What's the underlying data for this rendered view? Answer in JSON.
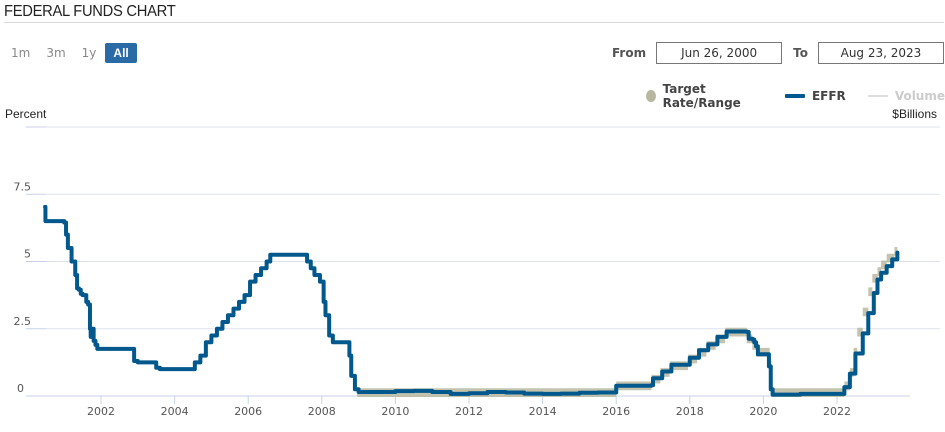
{
  "header": {
    "title": "FEDERAL FUNDS CHART"
  },
  "range_buttons": [
    {
      "label": "1m",
      "active": false
    },
    {
      "label": "3m",
      "active": false
    },
    {
      "label": "1y",
      "active": false
    },
    {
      "label": "All",
      "active": true
    }
  ],
  "date_range": {
    "from_label": "From",
    "from_value": "Jun 26, 2000",
    "to_label": "To",
    "to_value": "Aug 23, 2023"
  },
  "legend": [
    {
      "name": "Target Rate/Range",
      "icon": "circle-marker-icon",
      "color": "#b8b8a0",
      "enabled": true
    },
    {
      "name": "EFFR",
      "icon": "line-marker-icon",
      "color": "#00588c",
      "enabled": true
    },
    {
      "name": "Volume",
      "icon": "line-marker-icon",
      "color": "#dddddd",
      "enabled": false
    }
  ],
  "axes": {
    "left_title": "Percent",
    "right_title": "$Billions"
  },
  "colors": {
    "effr": "#00588c",
    "target": "#b8b8a0",
    "grid": "#dde2ea",
    "axis": "#c8d2e6",
    "active_button": "#2a6aa5"
  },
  "chart_data": {
    "type": "line",
    "title": "FEDERAL FUNDS CHART",
    "xlabel": "",
    "ylabel": "Percent",
    "y2label": "$Billions",
    "xlim": [
      "2000-06-26",
      "2023-08-23"
    ],
    "ylim": [
      0,
      10
    ],
    "yticks": [
      0,
      2.5,
      5,
      7.5
    ],
    "yticklabels": [
      "0",
      "2.5",
      "5",
      "7.5"
    ],
    "xticks": [
      2002,
      2004,
      2006,
      2008,
      2010,
      2012,
      2014,
      2016,
      2018,
      2020,
      2022
    ],
    "grid": true,
    "legend_position": "top-right",
    "series": [
      {
        "name": "EFFR",
        "x": [
          2000.48,
          2000.49,
          2000.5,
          2000.7,
          2000.9,
          2001.0,
          2001.05,
          2001.1,
          2001.2,
          2001.3,
          2001.35,
          2001.4,
          2001.45,
          2001.5,
          2001.6,
          2001.65,
          2001.7,
          2001.72,
          2001.75,
          2001.8,
          2001.85,
          2001.9,
          2002.0,
          2002.5,
          2002.85,
          2002.9,
          2003.0,
          2003.45,
          2003.5,
          2003.6,
          2004.0,
          2004.5,
          2004.55,
          2004.7,
          2004.85,
          2005.0,
          2005.15,
          2005.3,
          2005.45,
          2005.6,
          2005.75,
          2005.9,
          2006.05,
          2006.2,
          2006.35,
          2006.5,
          2006.6,
          2007.0,
          2007.5,
          2007.6,
          2007.7,
          2007.8,
          2007.95,
          2008.05,
          2008.1,
          2008.2,
          2008.3,
          2008.5,
          2008.7,
          2008.75,
          2008.8,
          2008.9,
          2009.0,
          2009.5,
          2010.0,
          2010.5,
          2011.0,
          2011.5,
          2012.0,
          2012.5,
          2013.0,
          2013.5,
          2014.0,
          2014.5,
          2015.0,
          2015.5,
          2015.95,
          2016.0,
          2016.95,
          2017.0,
          2017.2,
          2017.25,
          2017.45,
          2017.5,
          2017.95,
          2018.0,
          2018.2,
          2018.25,
          2018.45,
          2018.5,
          2018.7,
          2018.75,
          2018.95,
          2019.0,
          2019.55,
          2019.6,
          2019.7,
          2019.75,
          2019.8,
          2019.85,
          2020.1,
          2020.15,
          2020.2,
          2020.25,
          2021.0,
          2022.0,
          2022.2,
          2022.25,
          2022.35,
          2022.4,
          2022.5,
          2022.55,
          2022.7,
          2022.75,
          2022.85,
          2022.9,
          2023.0,
          2023.1,
          2023.2,
          2023.35,
          2023.5,
          2023.6,
          2023.64
        ],
        "values": [
          7.03,
          6.5,
          6.5,
          6.5,
          6.5,
          6.45,
          6.0,
          5.5,
          5.0,
          4.5,
          4.0,
          3.95,
          3.8,
          3.75,
          3.5,
          3.4,
          2.5,
          2.2,
          2.5,
          2.05,
          1.9,
          1.75,
          1.75,
          1.75,
          1.75,
          1.3,
          1.25,
          1.25,
          1.05,
          1.0,
          1.0,
          1.0,
          1.25,
          1.5,
          2.0,
          2.25,
          2.5,
          2.75,
          3.0,
          3.25,
          3.5,
          3.75,
          4.25,
          4.5,
          4.75,
          5.0,
          5.25,
          5.25,
          5.25,
          5.0,
          4.75,
          4.5,
          4.25,
          3.5,
          3.0,
          2.25,
          2.0,
          2.0,
          2.0,
          1.5,
          0.75,
          0.25,
          0.15,
          0.15,
          0.18,
          0.19,
          0.15,
          0.08,
          0.1,
          0.15,
          0.13,
          0.09,
          0.08,
          0.09,
          0.12,
          0.13,
          0.13,
          0.38,
          0.4,
          0.66,
          0.66,
          0.91,
          0.91,
          1.16,
          1.16,
          1.42,
          1.42,
          1.7,
          1.7,
          1.92,
          1.92,
          2.2,
          2.2,
          2.4,
          2.38,
          2.13,
          2.1,
          2.0,
          1.85,
          1.55,
          1.55,
          1.1,
          0.25,
          0.05,
          0.08,
          0.08,
          0.33,
          0.33,
          0.83,
          0.83,
          1.58,
          1.58,
          2.33,
          2.33,
          3.08,
          3.08,
          3.83,
          4.33,
          4.58,
          4.83,
          5.08,
          5.08,
          5.33
        ]
      },
      {
        "name": "Target Rate/Range",
        "note": "band from lower to upper bound; 0-0.25 range from Dec 2008 to Dec 2015, March 2020 to March 2022",
        "x": [
          2008.96,
          2015.96,
          2016.0,
          2016.96,
          2017.2,
          2017.45,
          2017.95,
          2018.2,
          2018.45,
          2018.7,
          2018.96,
          2019.55,
          2019.7,
          2019.8,
          2020.17,
          2020.22,
          2022.2,
          2022.35,
          2022.45,
          2022.55,
          2022.7,
          2022.85,
          2022.96,
          2023.1,
          2023.2,
          2023.35,
          2023.56
        ],
        "lower": [
          0,
          0,
          0.25,
          0.5,
          0.75,
          1.0,
          1.25,
          1.5,
          1.75,
          2.0,
          2.25,
          2.0,
          1.75,
          1.5,
          1.0,
          0,
          0.25,
          0.75,
          1.5,
          2.25,
          3.0,
          3.75,
          4.25,
          4.5,
          4.75,
          5.0,
          5.25
        ],
        "upper": [
          0.25,
          0.25,
          0.5,
          0.75,
          1.0,
          1.25,
          1.5,
          1.75,
          2.0,
          2.25,
          2.5,
          2.25,
          2.0,
          1.75,
          1.25,
          0.25,
          0.5,
          1.0,
          1.75,
          2.5,
          3.25,
          4.0,
          4.5,
          4.75,
          5.0,
          5.25,
          5.5
        ]
      }
    ]
  }
}
